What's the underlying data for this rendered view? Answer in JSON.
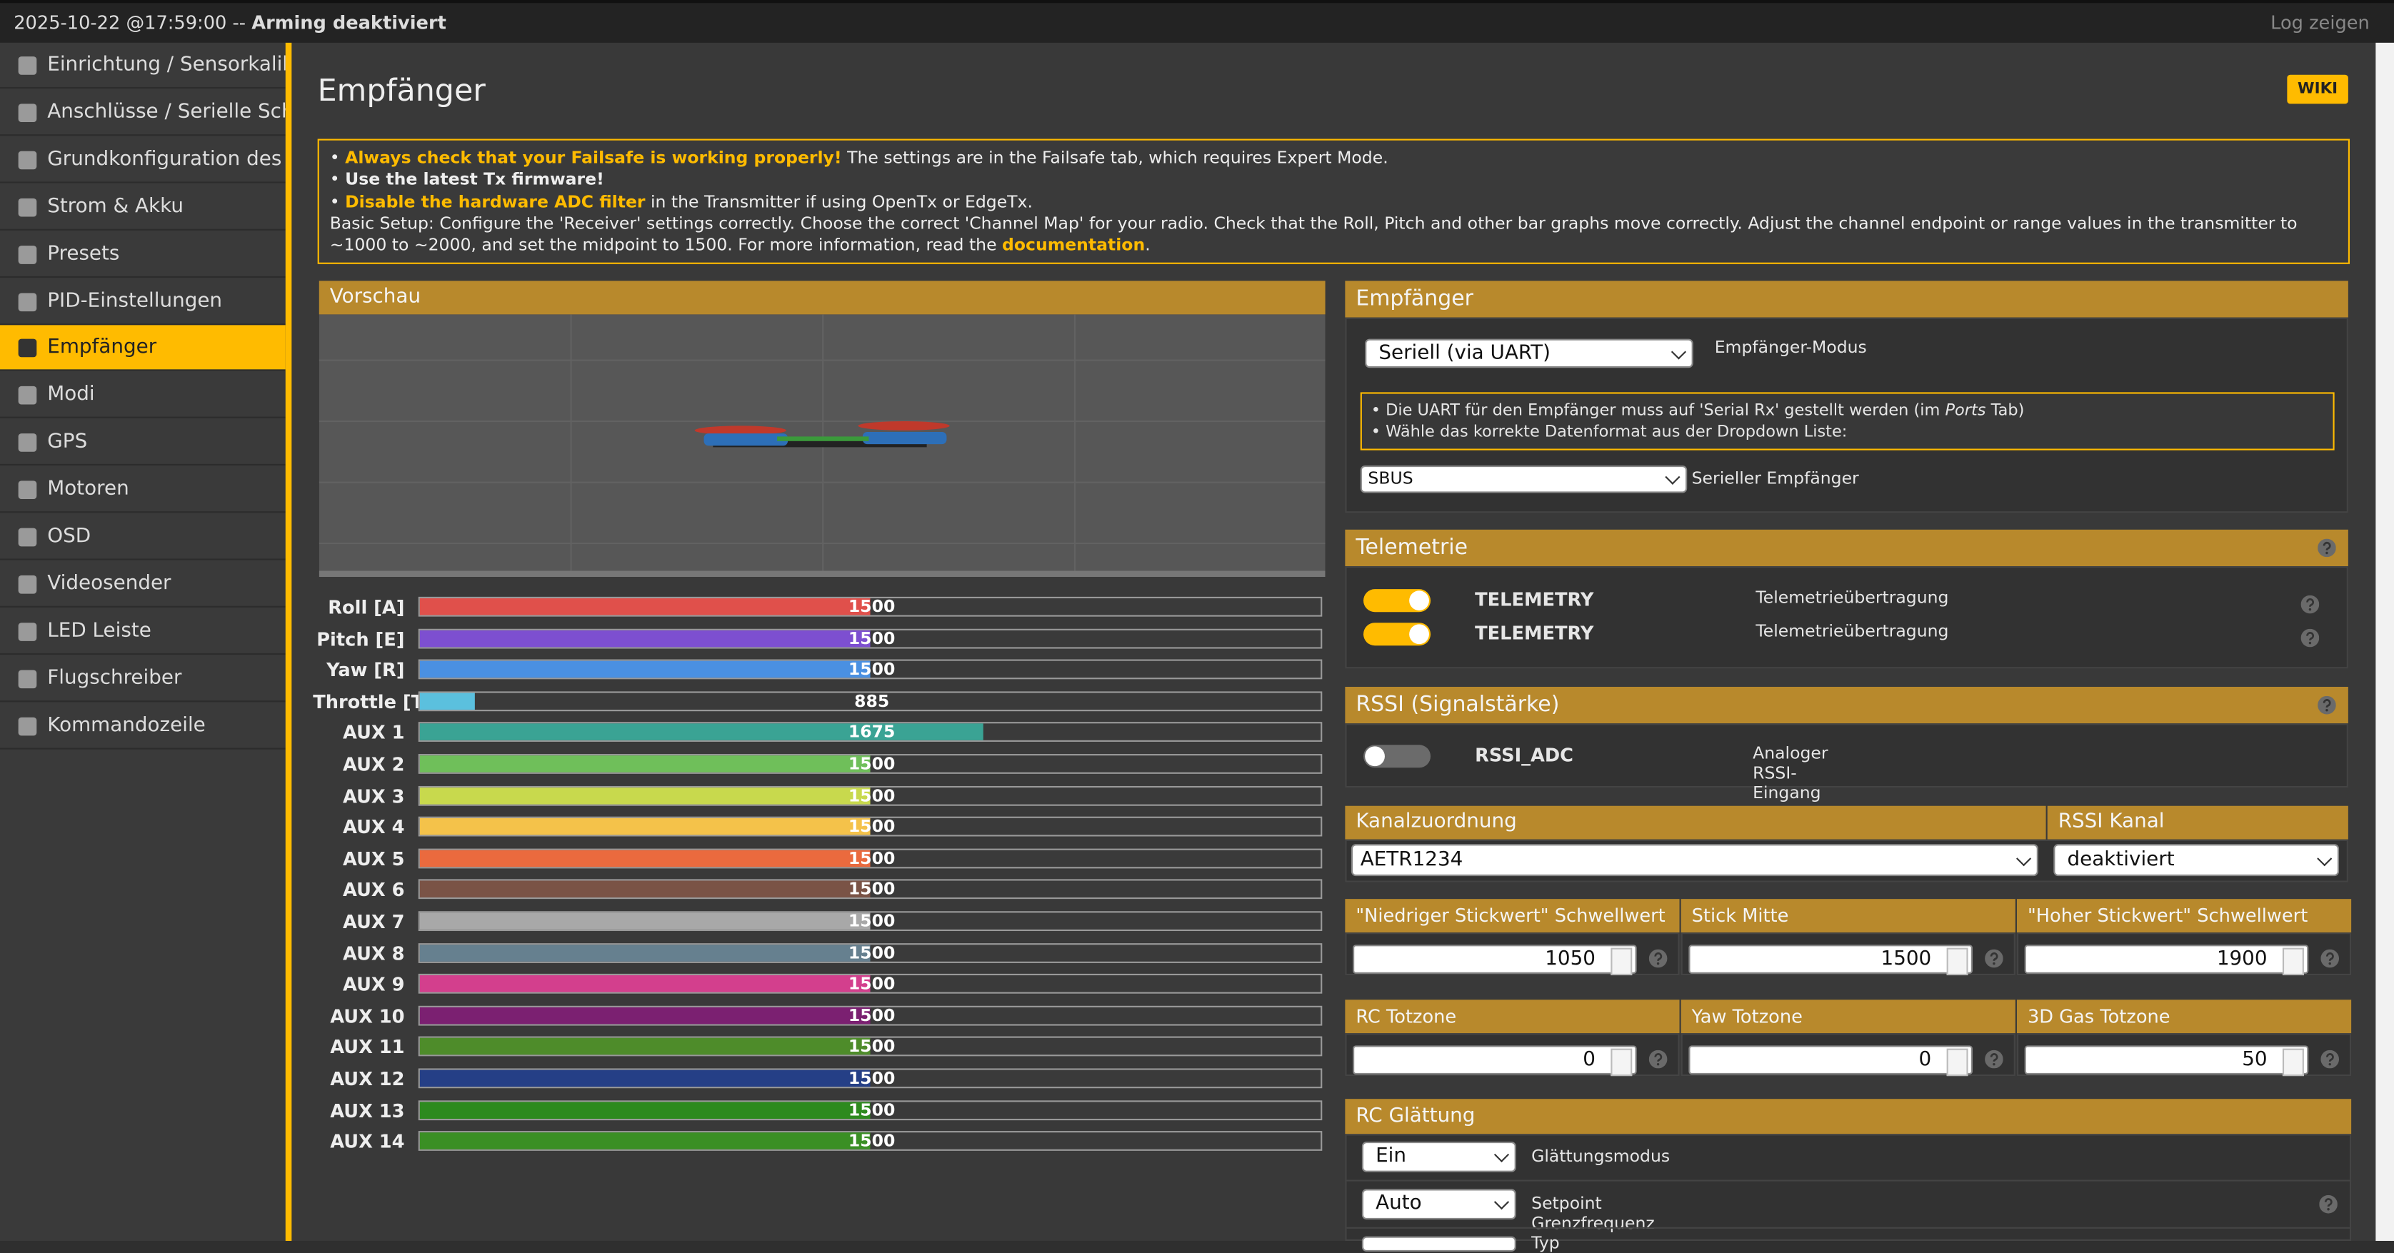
{
  "status_bar": {
    "timestamp": "2025-10-22 @17:59:00",
    "separator": "--",
    "arming": "Arming deaktiviert",
    "log_button": "Log zeigen"
  },
  "sidebar": {
    "active": 6,
    "items": [
      "Einrichtung / Sensorkalibr...",
      "Anschlüsse / Serielle Schn...",
      "Grundkonfiguration des C...",
      "Strom & Akku",
      "Presets",
      "PID-Einstellungen",
      "Empfänger",
      "Modi",
      "GPS",
      "Motoren",
      "OSD",
      "Videosender",
      "LED Leiste",
      "Flugschreiber",
      "Kommandozeile"
    ]
  },
  "page": {
    "title": "Empfänger",
    "wiki": "WIKI"
  },
  "notice": {
    "line1": {
      "bullet": "•",
      "highlight": "Always check that your Failsafe is working properly!",
      "text": "The settings are in the Failsafe tab, which requires Expert Mode."
    },
    "line2": {
      "bullet": "•",
      "bold": "Use the latest Tx firmware!"
    },
    "line3": {
      "bullet": "•",
      "highlight": "Disable the hardware ADC filter",
      "text": "in the Transmitter if using OpenTx or EdgeTx."
    },
    "line4": {
      "text": "Basic Setup: Configure the 'Receiver' settings correctly. Choose the correct 'Channel Map' for your radio. Check that the Roll, Pitch and other bar graphs move correctly. Adjust the channel endpoint or range values in the transmitter to ~1000 to ~2000, and set the midpoint to 1500. For more information, read the",
      "link": "documentation",
      "end": "."
    }
  },
  "preview": {
    "title": "Vorschau",
    "channels": [
      {
        "name": "Roll [A]",
        "value": 1500,
        "color": "#e0504b"
      },
      {
        "name": "Pitch [E]",
        "value": 1500,
        "color": "#7d4fd0"
      },
      {
        "name": "Yaw [R]",
        "value": 1500,
        "color": "#4a90e2"
      },
      {
        "name": "Throttle [T]",
        "value": 885,
        "color": "#5bc0de"
      },
      {
        "name": "AUX 1",
        "value": 1675,
        "color": "#3aa394"
      },
      {
        "name": "AUX 2",
        "value": 1500,
        "color": "#6fbf5a"
      },
      {
        "name": "AUX 3",
        "value": 1500,
        "color": "#c8d94d"
      },
      {
        "name": "AUX 4",
        "value": 1500,
        "color": "#f4c24a"
      },
      {
        "name": "AUX 5",
        "value": 1500,
        "color": "#ea6a3e"
      },
      {
        "name": "AUX 6",
        "value": 1500,
        "color": "#7a5346"
      },
      {
        "name": "AUX 7",
        "value": 1500,
        "color": "#a8a8a8"
      },
      {
        "name": "AUX 8",
        "value": 1500,
        "color": "#66808f"
      },
      {
        "name": "AUX 9",
        "value": 1500,
        "color": "#d33f8d"
      },
      {
        "name": "AUX 10",
        "value": 1500,
        "color": "#7b2071"
      },
      {
        "name": "AUX 11",
        "value": 1500,
        "color": "#4e8c2a"
      },
      {
        "name": "AUX 12",
        "value": 1500,
        "color": "#253f86"
      },
      {
        "name": "AUX 13",
        "value": 1500,
        "color": "#2d8a1e"
      },
      {
        "name": "AUX 14",
        "value": 1500,
        "color": "#3a8f24"
      }
    ]
  },
  "receiver": {
    "title": "Empfänger",
    "mode_select": "Seriell (via UART)",
    "mode_label": "Empfänger-Modus",
    "note1": {
      "text": "• Die UART für den Empfänger muss auf 'Serial Rx' gestellt werden (im",
      "em": "Ports",
      "end": "Tab)"
    },
    "note2": "• Wähle das korrekte Datenformat aus der Dropdown Liste:",
    "provider_select": "SBUS",
    "provider_label": "Serieller Empfänger"
  },
  "telemetry": {
    "title": "Telemetrie",
    "rows": [
      {
        "name": "TELEMETRY",
        "description": "Telemetrieübertragung",
        "enabled": true
      },
      {
        "name": "TELEMETRY",
        "description": "Telemetrieübertragung",
        "enabled": true
      }
    ]
  },
  "rssi": {
    "title": "RSSI (Signalstärke)",
    "rows": [
      {
        "name": "RSSI_ADC",
        "description": "Analoger RSSI-Eingang",
        "enabled": false
      }
    ]
  },
  "channel_map": {
    "title": "Kanalzuordnung",
    "value": "AETR1234"
  },
  "rssi_channel": {
    "title": "RSSI Kanal",
    "value": "deaktiviert"
  },
  "thresholds": [
    {
      "title": "\"Niedriger Stickwert\" Schwellwert",
      "value": 1050
    },
    {
      "title": "Stick Mitte",
      "value": 1500
    },
    {
      "title": "\"Hoher Stickwert\" Schwellwert",
      "value": 1900
    }
  ],
  "deadbands": [
    {
      "title": "RC Totzone",
      "value": 0
    },
    {
      "title": "Yaw Totzone",
      "value": 0
    },
    {
      "title": "3D Gas Totzone",
      "value": 50
    }
  ],
  "smoothing": {
    "title": "RC Glättung",
    "rows": [
      {
        "select": "Ein",
        "label": "Glättungsmodus"
      },
      {
        "select": "Auto",
        "label": "Setpoint Grenzfrequenz Typ"
      }
    ]
  }
}
